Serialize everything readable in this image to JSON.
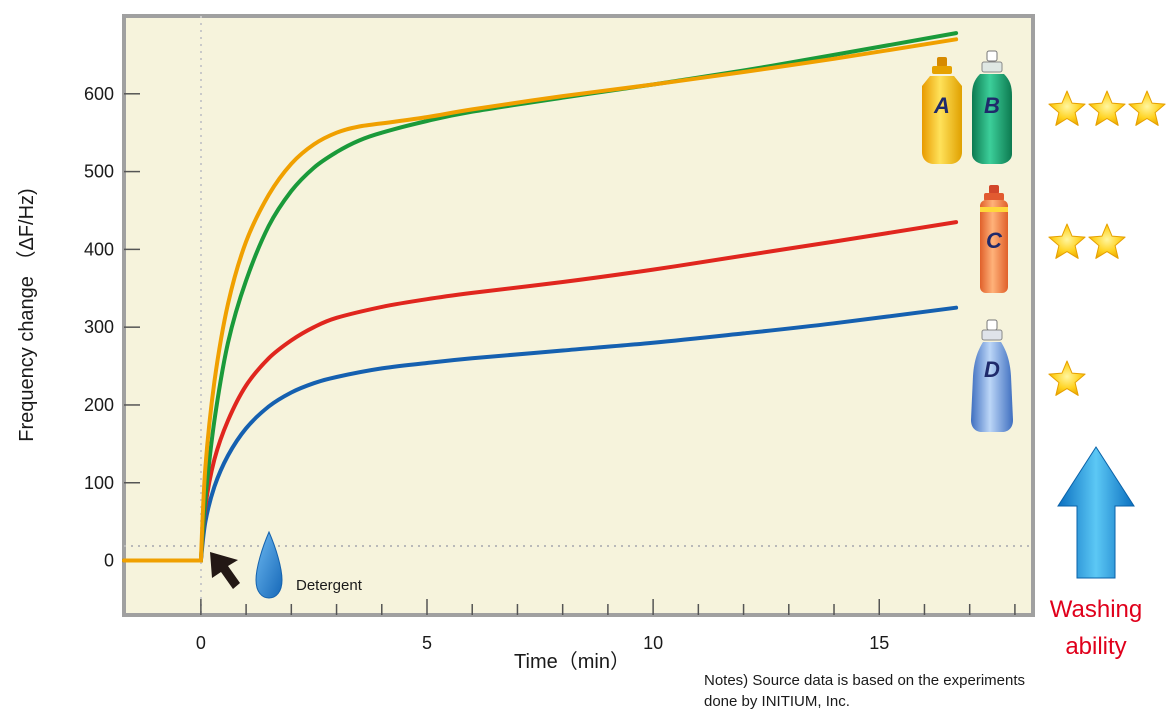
{
  "chart_data": {
    "type": "line",
    "xlabel": "Time（min）",
    "ylabel": "Frequency change （ΔF/Hz)",
    "xlim": [
      -1.7,
      18.4
    ],
    "ylim": [
      -70,
      700
    ],
    "xticks": [
      0,
      5,
      10,
      15
    ],
    "yticks": [
      0,
      100,
      200,
      300,
      400,
      500,
      600
    ],
    "grid": false,
    "series": [
      {
        "name": "A",
        "color": "#f0a000",
        "x": [
          -1.7,
          0,
          0.1,
          0.3,
          0.6,
          1.0,
          1.5,
          2.0,
          2.5,
          3.0,
          3.5,
          4.0,
          5.0,
          6.0,
          8.0,
          10.0,
          12.0,
          14.0,
          16.7
        ],
        "y": [
          0,
          0,
          120,
          230,
          330,
          410,
          470,
          510,
          535,
          550,
          558,
          562,
          570,
          580,
          597,
          612,
          628,
          645,
          670
        ]
      },
      {
        "name": "B",
        "color": "#1a9a3a",
        "x": [
          -1.7,
          0,
          0.1,
          0.3,
          0.6,
          1.0,
          1.5,
          2.0,
          2.5,
          3.0,
          3.5,
          4.0,
          5.0,
          6.0,
          8.0,
          10.0,
          12.0,
          14.0,
          16.7
        ],
        "y": [
          0,
          0,
          80,
          180,
          280,
          360,
          430,
          475,
          505,
          525,
          540,
          550,
          565,
          577,
          595,
          612,
          630,
          650,
          678
        ]
      },
      {
        "name": "C",
        "color": "#e0261e",
        "x": [
          -1.7,
          0,
          0.1,
          0.3,
          0.6,
          1.0,
          1.5,
          2.0,
          2.5,
          3.0,
          4.0,
          5.0,
          6.0,
          8.0,
          10.0,
          12.0,
          14.0,
          16.7
        ],
        "y": [
          0,
          0,
          70,
          130,
          180,
          225,
          260,
          283,
          300,
          312,
          326,
          336,
          344,
          358,
          374,
          392,
          410,
          435
        ]
      },
      {
        "name": "D",
        "color": "#1560b0",
        "x": [
          -1.7,
          0,
          0.1,
          0.3,
          0.6,
          1.0,
          1.5,
          2.0,
          2.5,
          3.0,
          4.0,
          5.0,
          6.0,
          8.0,
          10.0,
          12.0,
          14.0,
          16.7
        ],
        "y": [
          0,
          0,
          50,
          95,
          135,
          170,
          198,
          216,
          228,
          236,
          247,
          254,
          260,
          270,
          280,
          292,
          305,
          325
        ]
      }
    ],
    "annotations": {
      "detergent": "Detergent",
      "washing_line1": "Washing",
      "washing_line2": "ability",
      "notes_line1": "Notes) Source data is based on the experiments",
      "notes_line2": "done by INITIUM, Inc."
    },
    "ratings": [
      {
        "bottles": [
          "A",
          "B"
        ],
        "stars": 3
      },
      {
        "bottles": [
          "C"
        ],
        "stars": 2
      },
      {
        "bottles": [
          "D"
        ],
        "stars": 1
      }
    ]
  },
  "colors": {
    "plot_background": "#f6f3dc",
    "frame": "#a0a0a0",
    "washing_text": "#e0001b",
    "arrow": "#1f8fd8"
  }
}
